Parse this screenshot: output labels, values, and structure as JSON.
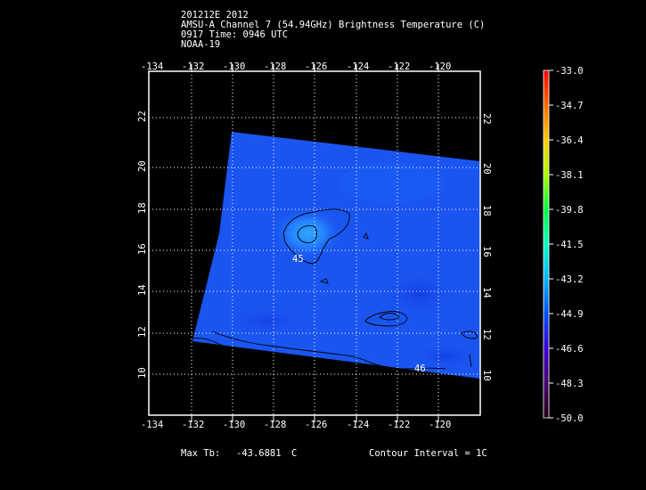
{
  "header": {
    "line1": "201212E 2012",
    "line2": "AMSU-A Channel 7 (54.94GHz) Brightness Temperature (C)",
    "line3": "0917 Time: 0946 UTC",
    "line4": "NOAA-19"
  },
  "map": {
    "lon_ticks": [
      "-134",
      "-132",
      "-130",
      "-128",
      "-126",
      "-124",
      "-122",
      "-120"
    ],
    "lat_ticks": [
      "10",
      "12",
      "14",
      "16",
      "18",
      "20",
      "22"
    ],
    "contour_labels": [
      "45",
      "46"
    ],
    "colors": {
      "swath_main": "#1a55f0",
      "frame": "#ffffff",
      "grid": "#ffffff",
      "contour": "#000000"
    }
  },
  "colorbar": {
    "ticks": [
      "-33.0",
      "-34.7",
      "-36.4",
      "-38.1",
      "-39.8",
      "-41.5",
      "-43.2",
      "-44.9",
      "-46.6",
      "-48.3",
      "-50.0"
    ],
    "colors": [
      "#ff0000",
      "#ff6a00",
      "#ffc800",
      "#aaff00",
      "#00ff40",
      "#00ffc0",
      "#00b4ff",
      "#0050ff",
      "#3a00d8",
      "#4a0070",
      "#1a0010"
    ]
  },
  "footer": {
    "max_tb_label": "Max Tb:",
    "max_tb_value": "-43.6881",
    "max_tb_unit": "C",
    "contour_interval": "Contour Interval = 1C"
  }
}
